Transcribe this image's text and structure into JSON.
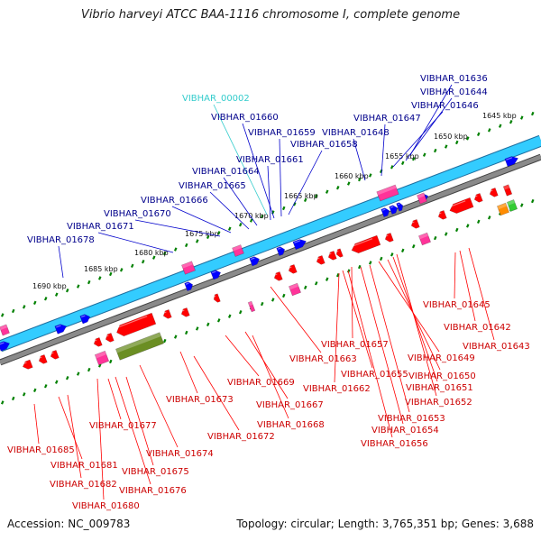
{
  "title": "Vibrio harveyi ATCC BAA-1116 chromosome I, complete genome",
  "footer": {
    "accession": "Accession: NC_009783",
    "summary": "Topology: circular; Length: 3,765,351 bp; Genes: 3,688"
  },
  "colors": {
    "forward_track": "#33ccff",
    "reverse_track": "#7f7f7f",
    "forward_gene": "#0000ff",
    "reverse_gene": "#ff0000",
    "pseudo_gene": "#ff3399",
    "rna_gene": "#6b8e23",
    "misc_gene": "#ff8c00",
    "green_gene": "#33cc33",
    "tick_dash": "#008000",
    "forward_label": "#00008b",
    "reverse_label": "#cc0000",
    "rna_label": "#33cccc"
  },
  "ticks": [
    {
      "label": "1645 kbp"
    },
    {
      "label": "1650 kbp"
    },
    {
      "label": "1655 kbp"
    },
    {
      "label": "1660 kbp"
    },
    {
      "label": "1665 kbp"
    },
    {
      "label": "1670 kbp"
    },
    {
      "label": "1675 kbp"
    },
    {
      "label": "1680 kbp"
    },
    {
      "label": "1685 kbp"
    },
    {
      "label": "1690 kbp"
    }
  ],
  "forward_labels": [
    "VIBHAR_00002",
    "VIBHAR_01636",
    "VIBHAR_01644",
    "VIBHAR_01646",
    "VIBHAR_01647",
    "VIBHAR_01648",
    "VIBHAR_01658",
    "VIBHAR_01659",
    "VIBHAR_01660",
    "VIBHAR_01661",
    "VIBHAR_01664",
    "VIBHAR_01665",
    "VIBHAR_01666",
    "VIBHAR_01670",
    "VIBHAR_01671",
    "VIBHAR_01678"
  ],
  "reverse_labels": [
    "VIBHAR_01645",
    "VIBHAR_01642",
    "VIBHAR_01643",
    "VIBHAR_01657",
    "VIBHAR_01649",
    "VIBHAR_01663",
    "VIBHAR_01655",
    "VIBHAR_01650",
    "VIBHAR_01669",
    "VIBHAR_01662",
    "VIBHAR_01651",
    "VIBHAR_01673",
    "VIBHAR_01667",
    "VIBHAR_01652",
    "VIBHAR_01653",
    "VIBHAR_01668",
    "VIBHAR_01654",
    "VIBHAR_01677",
    "VIBHAR_01672",
    "VIBHAR_01656",
    "VIBHAR_01685",
    "VIBHAR_01674",
    "VIBHAR_01681",
    "VIBHAR_01675",
    "VIBHAR_01682",
    "VIBHAR_01676",
    "VIBHAR_01680"
  ]
}
